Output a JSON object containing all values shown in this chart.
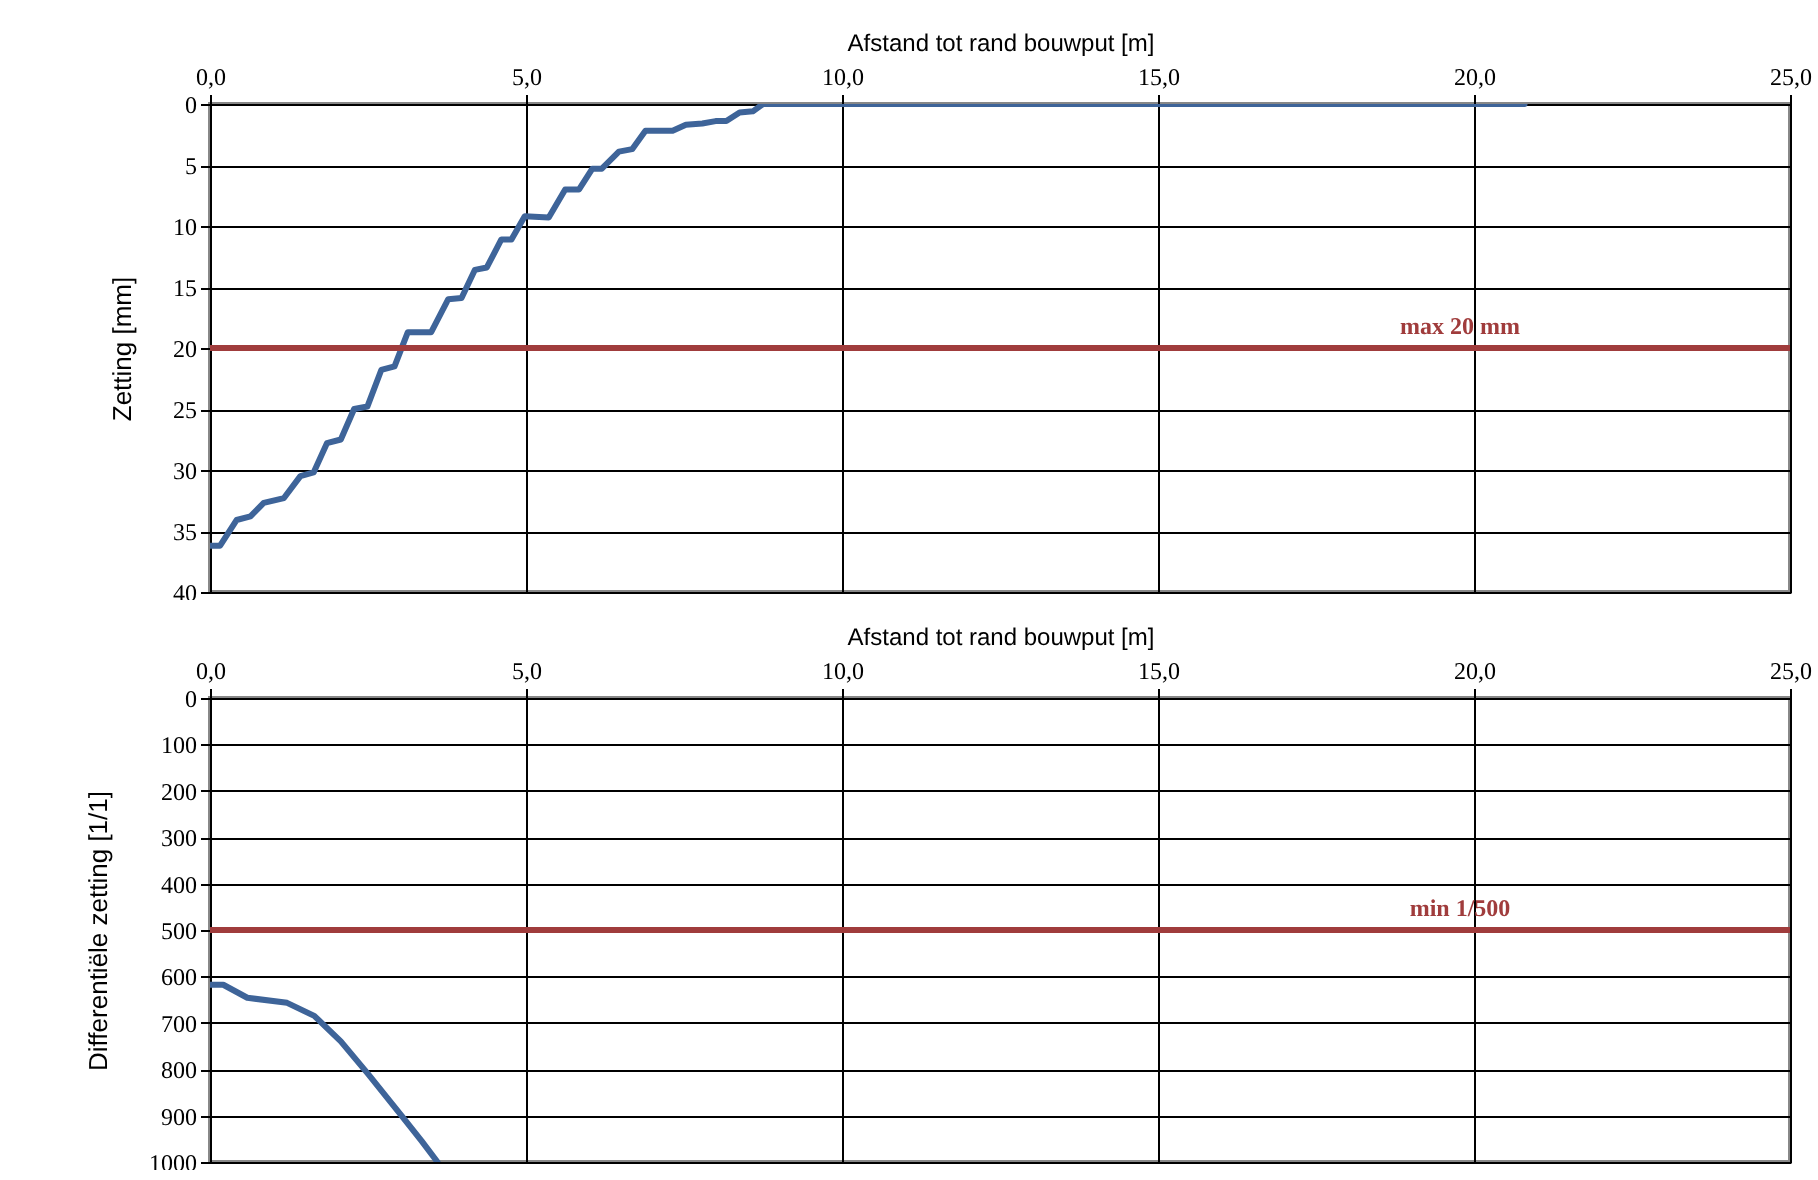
{
  "chart_data": [
    {
      "type": "line",
      "xlabel": "Afstand tot rand bouwput [m]",
      "ylabel": "Zetting [mm]",
      "xlim": [
        0,
        25
      ],
      "xticks": [
        {
          "value": 0,
          "label": "0,0"
        },
        {
          "value": 5,
          "label": "5,0"
        },
        {
          "value": 10,
          "label": "10,0"
        },
        {
          "value": 15,
          "label": "15,0"
        },
        {
          "value": 20,
          "label": "20,0"
        },
        {
          "value": 25,
          "label": "25,0"
        }
      ],
      "ylim": [
        40,
        0
      ],
      "yticks": [
        0,
        5,
        10,
        15,
        20,
        25,
        30,
        35,
        40
      ],
      "grid": true,
      "series": [
        {
          "color": "#3e6499",
          "x": [
            0,
            0.16,
            0.42,
            0.64,
            0.85,
            1.17,
            1.43,
            1.64,
            1.85,
            2.07,
            2.28,
            2.49,
            2.71,
            2.92,
            3.13,
            3.5,
            3.77,
            3.98,
            4.19,
            4.38,
            4.61,
            4.77,
            4.98,
            5.36,
            5.62,
            5.84,
            6.05,
            6.2,
            6.47,
            6.68,
            6.89,
            7.32,
            7.53,
            7.79,
            8.0,
            8.17,
            8.38,
            8.59,
            8.75,
            9.18,
            20.8
          ],
          "values": [
            36.2,
            36.2,
            34.1,
            33.8,
            32.7,
            32.3,
            30.5,
            30.2,
            27.8,
            27.5,
            25.0,
            24.8,
            21.8,
            21.5,
            18.7,
            18.7,
            16.0,
            15.9,
            13.6,
            13.4,
            11.1,
            11.1,
            9.2,
            9.3,
            7.0,
            7.0,
            5.3,
            5.3,
            3.9,
            3.7,
            2.2,
            2.2,
            1.7,
            1.6,
            1.4,
            1.4,
            0.7,
            0.6,
            0,
            0,
            0
          ]
        }
      ],
      "ref_lines": [
        {
          "axis": "y",
          "value": 20,
          "label": "max 20 mm",
          "color": "#a03c3c"
        }
      ]
    },
    {
      "type": "line",
      "xlabel": "Afstand tot rand bouwput [m]",
      "ylabel": "Differentiële zetting [1/1]",
      "xlim": [
        0,
        25
      ],
      "xticks": [
        {
          "value": 0,
          "label": "0,0"
        },
        {
          "value": 5,
          "label": "5,0"
        },
        {
          "value": 10,
          "label": "10,0"
        },
        {
          "value": 15,
          "label": "15,0"
        },
        {
          "value": 20,
          "label": "20,0"
        },
        {
          "value": 25,
          "label": "25,0"
        }
      ],
      "ylim": [
        1000,
        0
      ],
      "yticks": [
        0,
        100,
        200,
        300,
        400,
        500,
        600,
        700,
        800,
        900,
        1000
      ],
      "grid": true,
      "series": [
        {
          "color": "#3e6499",
          "x": [
            0,
            0.21,
            0.59,
            1.22,
            1.65,
            2.07,
            2.5,
            3.03,
            3.35,
            3.6
          ],
          "values": [
            618,
            618,
            646,
            657,
            685,
            740,
            810,
            900,
            955,
            1000
          ]
        }
      ],
      "ref_lines": [
        {
          "axis": "y",
          "value": 500,
          "label": "min 1/500",
          "color": "#a03c3c"
        }
      ]
    }
  ]
}
